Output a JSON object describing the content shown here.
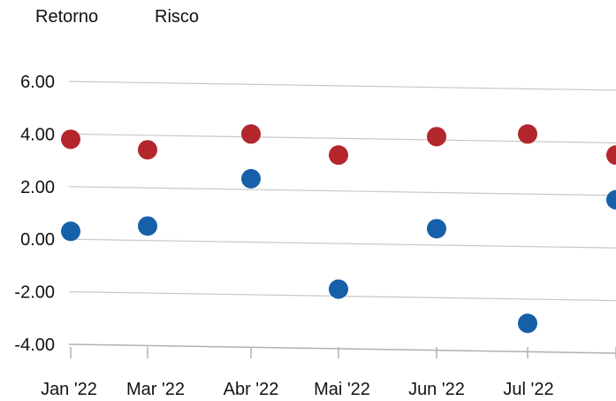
{
  "chart_data": {
    "type": "scatter",
    "title": "",
    "xlabel": "",
    "ylabel": "",
    "categories": [
      "Jan '22",
      "Mar '22",
      "Abr '22",
      "Mai '22",
      "Jun '22",
      "Jul '22",
      ""
    ],
    "y_ticks": [
      "6.00",
      "4.00",
      "2.00",
      "0.00",
      "-2.00",
      "-4.00"
    ],
    "ylim": [
      -4.3,
      6.2
    ],
    "grid": true,
    "legend_position": "top-left",
    "series": [
      {
        "name": "Retorno",
        "color": "#1560a8",
        "values": [
          0.3,
          0.5,
          2.3,
          -1.9,
          0.4,
          -3.2,
          1.5
        ]
      },
      {
        "name": "Risco",
        "color": "#b3262c",
        "values": [
          3.8,
          3.4,
          4.0,
          3.2,
          3.9,
          4.0,
          3.2
        ]
      }
    ]
  }
}
